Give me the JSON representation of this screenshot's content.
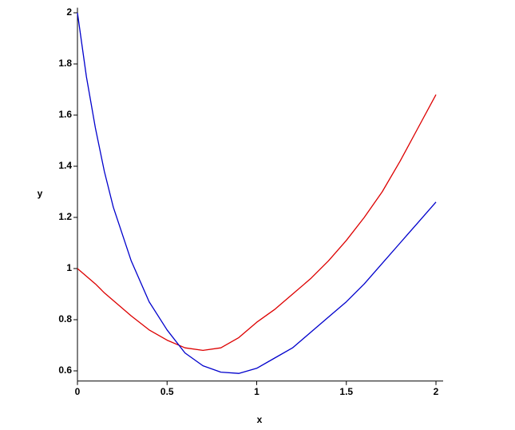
{
  "chart_data": {
    "type": "line",
    "x_label": "x",
    "y_label": "y",
    "x": [
      0,
      0.05,
      0.1,
      0.15,
      0.2,
      0.3,
      0.4,
      0.5,
      0.6,
      0.7,
      0.8,
      0.9,
      1.0,
      1.1,
      1.2,
      1.3,
      1.4,
      1.5,
      1.6,
      1.7,
      1.8,
      1.9,
      2.0
    ],
    "series": [
      {
        "color": "#dd0000",
        "values": [
          1.0,
          0.97,
          0.94,
          0.905,
          0.875,
          0.815,
          0.76,
          0.72,
          0.69,
          0.68,
          0.69,
          0.73,
          0.79,
          0.84,
          0.9,
          0.96,
          1.03,
          1.11,
          1.2,
          1.3,
          1.42,
          1.55,
          1.68
        ]
      },
      {
        "color": "#0000cc",
        "values": [
          2.0,
          1.75,
          1.55,
          1.38,
          1.24,
          1.03,
          0.87,
          0.76,
          0.67,
          0.62,
          0.595,
          0.59,
          0.61,
          0.65,
          0.69,
          0.75,
          0.81,
          0.87,
          0.94,
          1.02,
          1.1,
          1.18,
          1.26
        ]
      }
    ],
    "xlim": [
      0,
      2.04
    ],
    "ylim": [
      0.56,
      2.02
    ],
    "xticks": [
      0,
      0.5,
      1,
      1.5,
      2
    ],
    "yticks": [
      0.6,
      0.8,
      1,
      1.2,
      1.4,
      1.6,
      1.8,
      2
    ]
  }
}
